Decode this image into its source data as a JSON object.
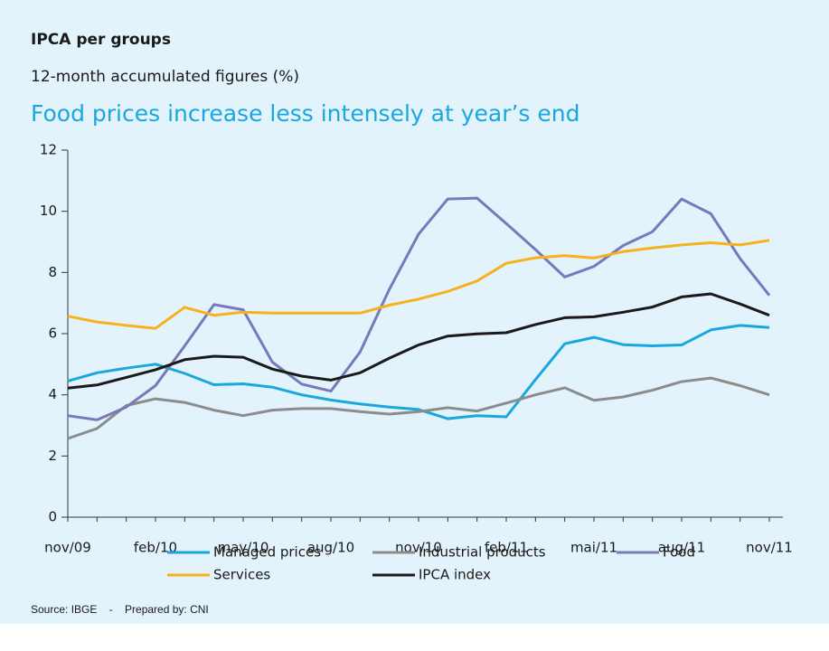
{
  "chart_data": {
    "type": "line",
    "title": "IPCA per groups",
    "subtitle": "12-month accumulated figures (%)",
    "headline": "Food prices increase less intensely at year’s end",
    "source": "Source: IBGE    -    Prepared by: CNI",
    "categories": [
      "nov/09",
      null,
      null,
      "feb/10",
      null,
      null,
      "may/10",
      null,
      null,
      "aug/10",
      null,
      null,
      "nov/10",
      null,
      null,
      "feb/11",
      null,
      null,
      "mai/11",
      null,
      null,
      "aug/11",
      null,
      null,
      "nov/11"
    ],
    "ylim": [
      0,
      12
    ],
    "yticks": [
      0,
      2,
      4,
      6,
      8,
      10,
      12
    ],
    "grid": false,
    "series": [
      {
        "name": "Managed prices",
        "color": "#1aa7de",
        "values": [
          4.45,
          4.72,
          4.87,
          5.0,
          4.7,
          4.33,
          4.36,
          4.25,
          4.0,
          3.83,
          3.7,
          3.6,
          3.52,
          3.22,
          3.32,
          3.28,
          4.5,
          5.67,
          5.88,
          5.64,
          5.6,
          5.63,
          6.12,
          6.27,
          6.2
        ]
      },
      {
        "name": "Industrial products",
        "color": "#8c8c8c",
        "values": [
          2.57,
          2.9,
          3.65,
          3.87,
          3.75,
          3.5,
          3.32,
          3.5,
          3.55,
          3.55,
          3.45,
          3.37,
          3.45,
          3.58,
          3.47,
          3.73,
          4.0,
          4.23,
          3.82,
          3.93,
          4.15,
          4.43,
          4.55,
          4.3,
          4.0
        ]
      },
      {
        "name": "Food",
        "color": "#7a78bd",
        "values": [
          3.32,
          3.18,
          3.6,
          4.3,
          5.6,
          6.95,
          6.78,
          5.07,
          4.35,
          4.12,
          5.4,
          7.45,
          9.25,
          10.4,
          10.43,
          9.6,
          8.75,
          7.85,
          8.2,
          8.88,
          9.33,
          10.4,
          9.92,
          8.45,
          7.25
        ]
      },
      {
        "name": "Services",
        "color": "#f5b21c",
        "values": [
          6.57,
          6.38,
          6.27,
          6.17,
          6.86,
          6.6,
          6.7,
          6.67,
          6.67,
          6.67,
          6.67,
          6.93,
          7.13,
          7.38,
          7.72,
          8.3,
          8.48,
          8.55,
          8.47,
          8.68,
          8.8,
          8.9,
          8.97,
          8.9,
          9.05
        ]
      },
      {
        "name": "IPCA index",
        "color": "#1a1a1a",
        "values": [
          4.22,
          4.32,
          4.57,
          4.82,
          5.15,
          5.26,
          5.23,
          4.84,
          4.61,
          4.48,
          4.72,
          5.2,
          5.63,
          5.92,
          5.99,
          6.03,
          6.3,
          6.52,
          6.55,
          6.7,
          6.87,
          7.2,
          7.3,
          6.97,
          6.6
        ]
      }
    ]
  }
}
